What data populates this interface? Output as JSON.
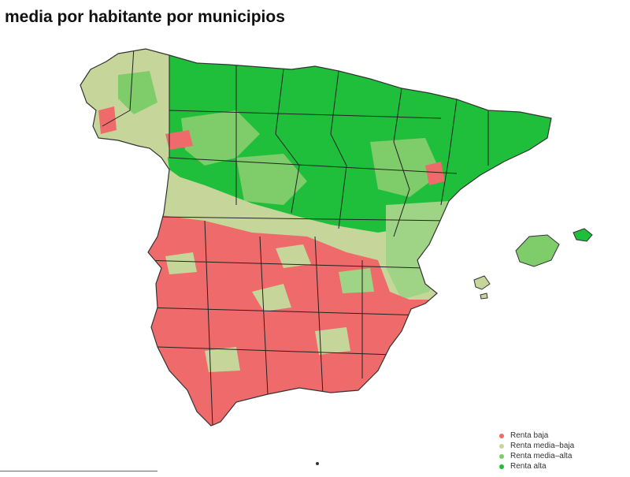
{
  "title": "media por habitante por municipios",
  "legend": [
    {
      "label": "Renta baja",
      "color": "#ef6b6b"
    },
    {
      "label": "Renta media–baja",
      "color": "#c6d69a"
    },
    {
      "label": "Renta media–alta",
      "color": "#7fcc6a"
    },
    {
      "label": "Renta alta",
      "color": "#1fbf3c"
    }
  ],
  "colors": {
    "renta_baja": "#ef6b6b",
    "renta_media_baja": "#c6d69a",
    "renta_media_alta": "#7fcc6a",
    "renta_alta": "#1fbf3c",
    "border": "#222222"
  }
}
